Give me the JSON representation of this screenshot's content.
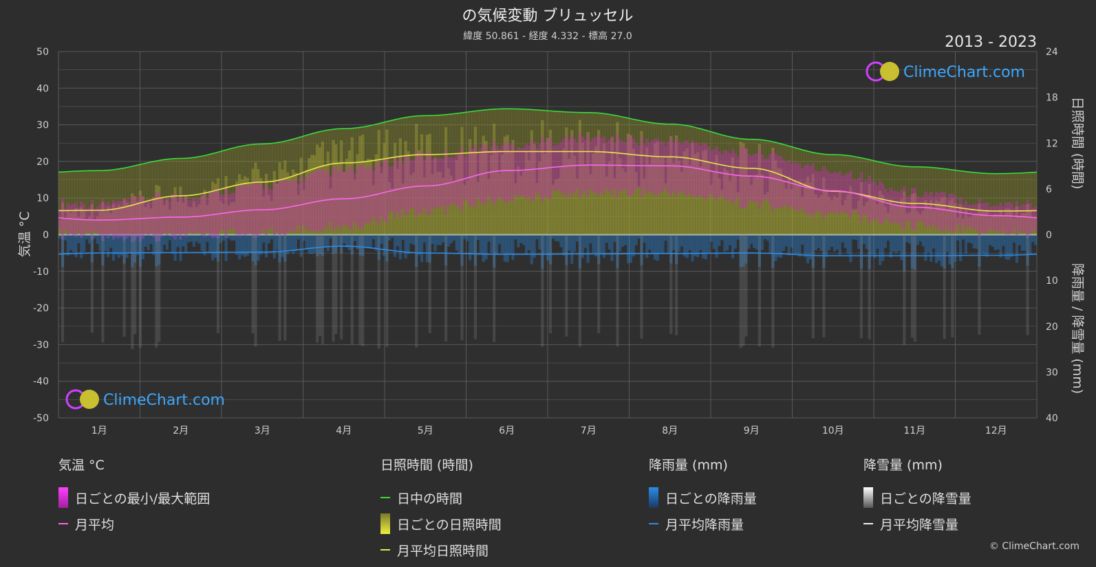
{
  "title": "の気候変動 ブリュッセル",
  "subtitle": "緯度 50.861 - 経度 4.332 - 標高 27.0",
  "period": "2013 - 2023",
  "logo": "ClimeChart.com",
  "copyright": "© ClimeChart.com",
  "axes": {
    "left_title": "気温 °C",
    "right_top_title": "日照時間 (時間)",
    "right_bottom_title": "降雨量 / 降雪量 (mm)",
    "left_ticks": [
      "50",
      "40",
      "30",
      "20",
      "10",
      "0",
      "-10",
      "-20",
      "-30",
      "-40",
      "-50"
    ],
    "right_top_ticks": [
      "24",
      "18",
      "12",
      "6",
      "0"
    ],
    "right_bottom_ticks": [
      "10",
      "20",
      "30",
      "40"
    ]
  },
  "legend": {
    "temp": {
      "head": "気温 °C",
      "range": "日ごとの最小/最大範囲",
      "avg": "月平均"
    },
    "sun": {
      "head": "日照時間 (時間)",
      "daylight": "日中の時間",
      "daily": "日ごとの日照時間",
      "avg": "月平均日照時間"
    },
    "rain": {
      "head": "降雨量 (mm)",
      "daily": "日ごとの降雨量",
      "avg": "月平均降雨量"
    },
    "snow": {
      "head": "降雪量 (mm)",
      "daily": "日ごとの降雪量",
      "avg": "月平均降雪量"
    }
  },
  "colors": {
    "background": "#2d2d2d",
    "grid": "#5a5a5a",
    "daylight": "#3adb3a",
    "sunshine_avg": "#e8e84a",
    "sunshine_fill": "#8a8a2e",
    "temp_avg": "#ff66ee",
    "temp_range": "#c030b0",
    "rain": "#2b8ce8",
    "snow": "#8a8a8a",
    "logo": "#3da8ff"
  },
  "chart_data": {
    "type": "line",
    "categories": [
      "1月",
      "2月",
      "3月",
      "4月",
      "5月",
      "6月",
      "7月",
      "8月",
      "9月",
      "10月",
      "11月",
      "12月"
    ],
    "temp_ylim": [
      -50,
      50
    ],
    "sun_ylim": [
      0,
      24
    ],
    "precip_ylim": [
      0,
      40
    ],
    "series": [
      {
        "name": "日中の時間",
        "axis": "sun",
        "values": [
          8.4,
          10.0,
          11.9,
          13.9,
          15.6,
          16.5,
          16.0,
          14.5,
          12.5,
          10.5,
          8.9,
          8.0
        ]
      },
      {
        "name": "月平均日照時間",
        "axis": "sun",
        "values": [
          3.2,
          5.1,
          6.9,
          9.4,
          10.5,
          10.9,
          10.9,
          10.2,
          8.7,
          5.7,
          4.1,
          3.1
        ]
      },
      {
        "name": "月平均",
        "axis": "temp",
        "values": [
          4.0,
          4.8,
          6.8,
          9.8,
          13.3,
          17.5,
          19.0,
          18.8,
          16.0,
          12.0,
          7.5,
          5.2
        ]
      },
      {
        "name": "月平均降雨量",
        "axis": "precip",
        "values": [
          4.0,
          3.9,
          3.8,
          2.5,
          4.0,
          4.3,
          4.2,
          4.1,
          4.0,
          4.6,
          4.6,
          4.5
        ]
      },
      {
        "name": "月平均降雪量",
        "axis": "precip",
        "values": [
          0,
          0,
          0,
          0,
          0,
          0,
          0,
          0,
          0,
          0,
          0,
          0
        ]
      }
    ],
    "temp_range": {
      "min": [
        1,
        1,
        2,
        4,
        8,
        11,
        13,
        13,
        10,
        7,
        4,
        2
      ],
      "max": [
        7,
        9,
        12,
        16,
        20,
        23,
        25,
        24,
        21,
        16,
        10,
        7
      ]
    }
  }
}
